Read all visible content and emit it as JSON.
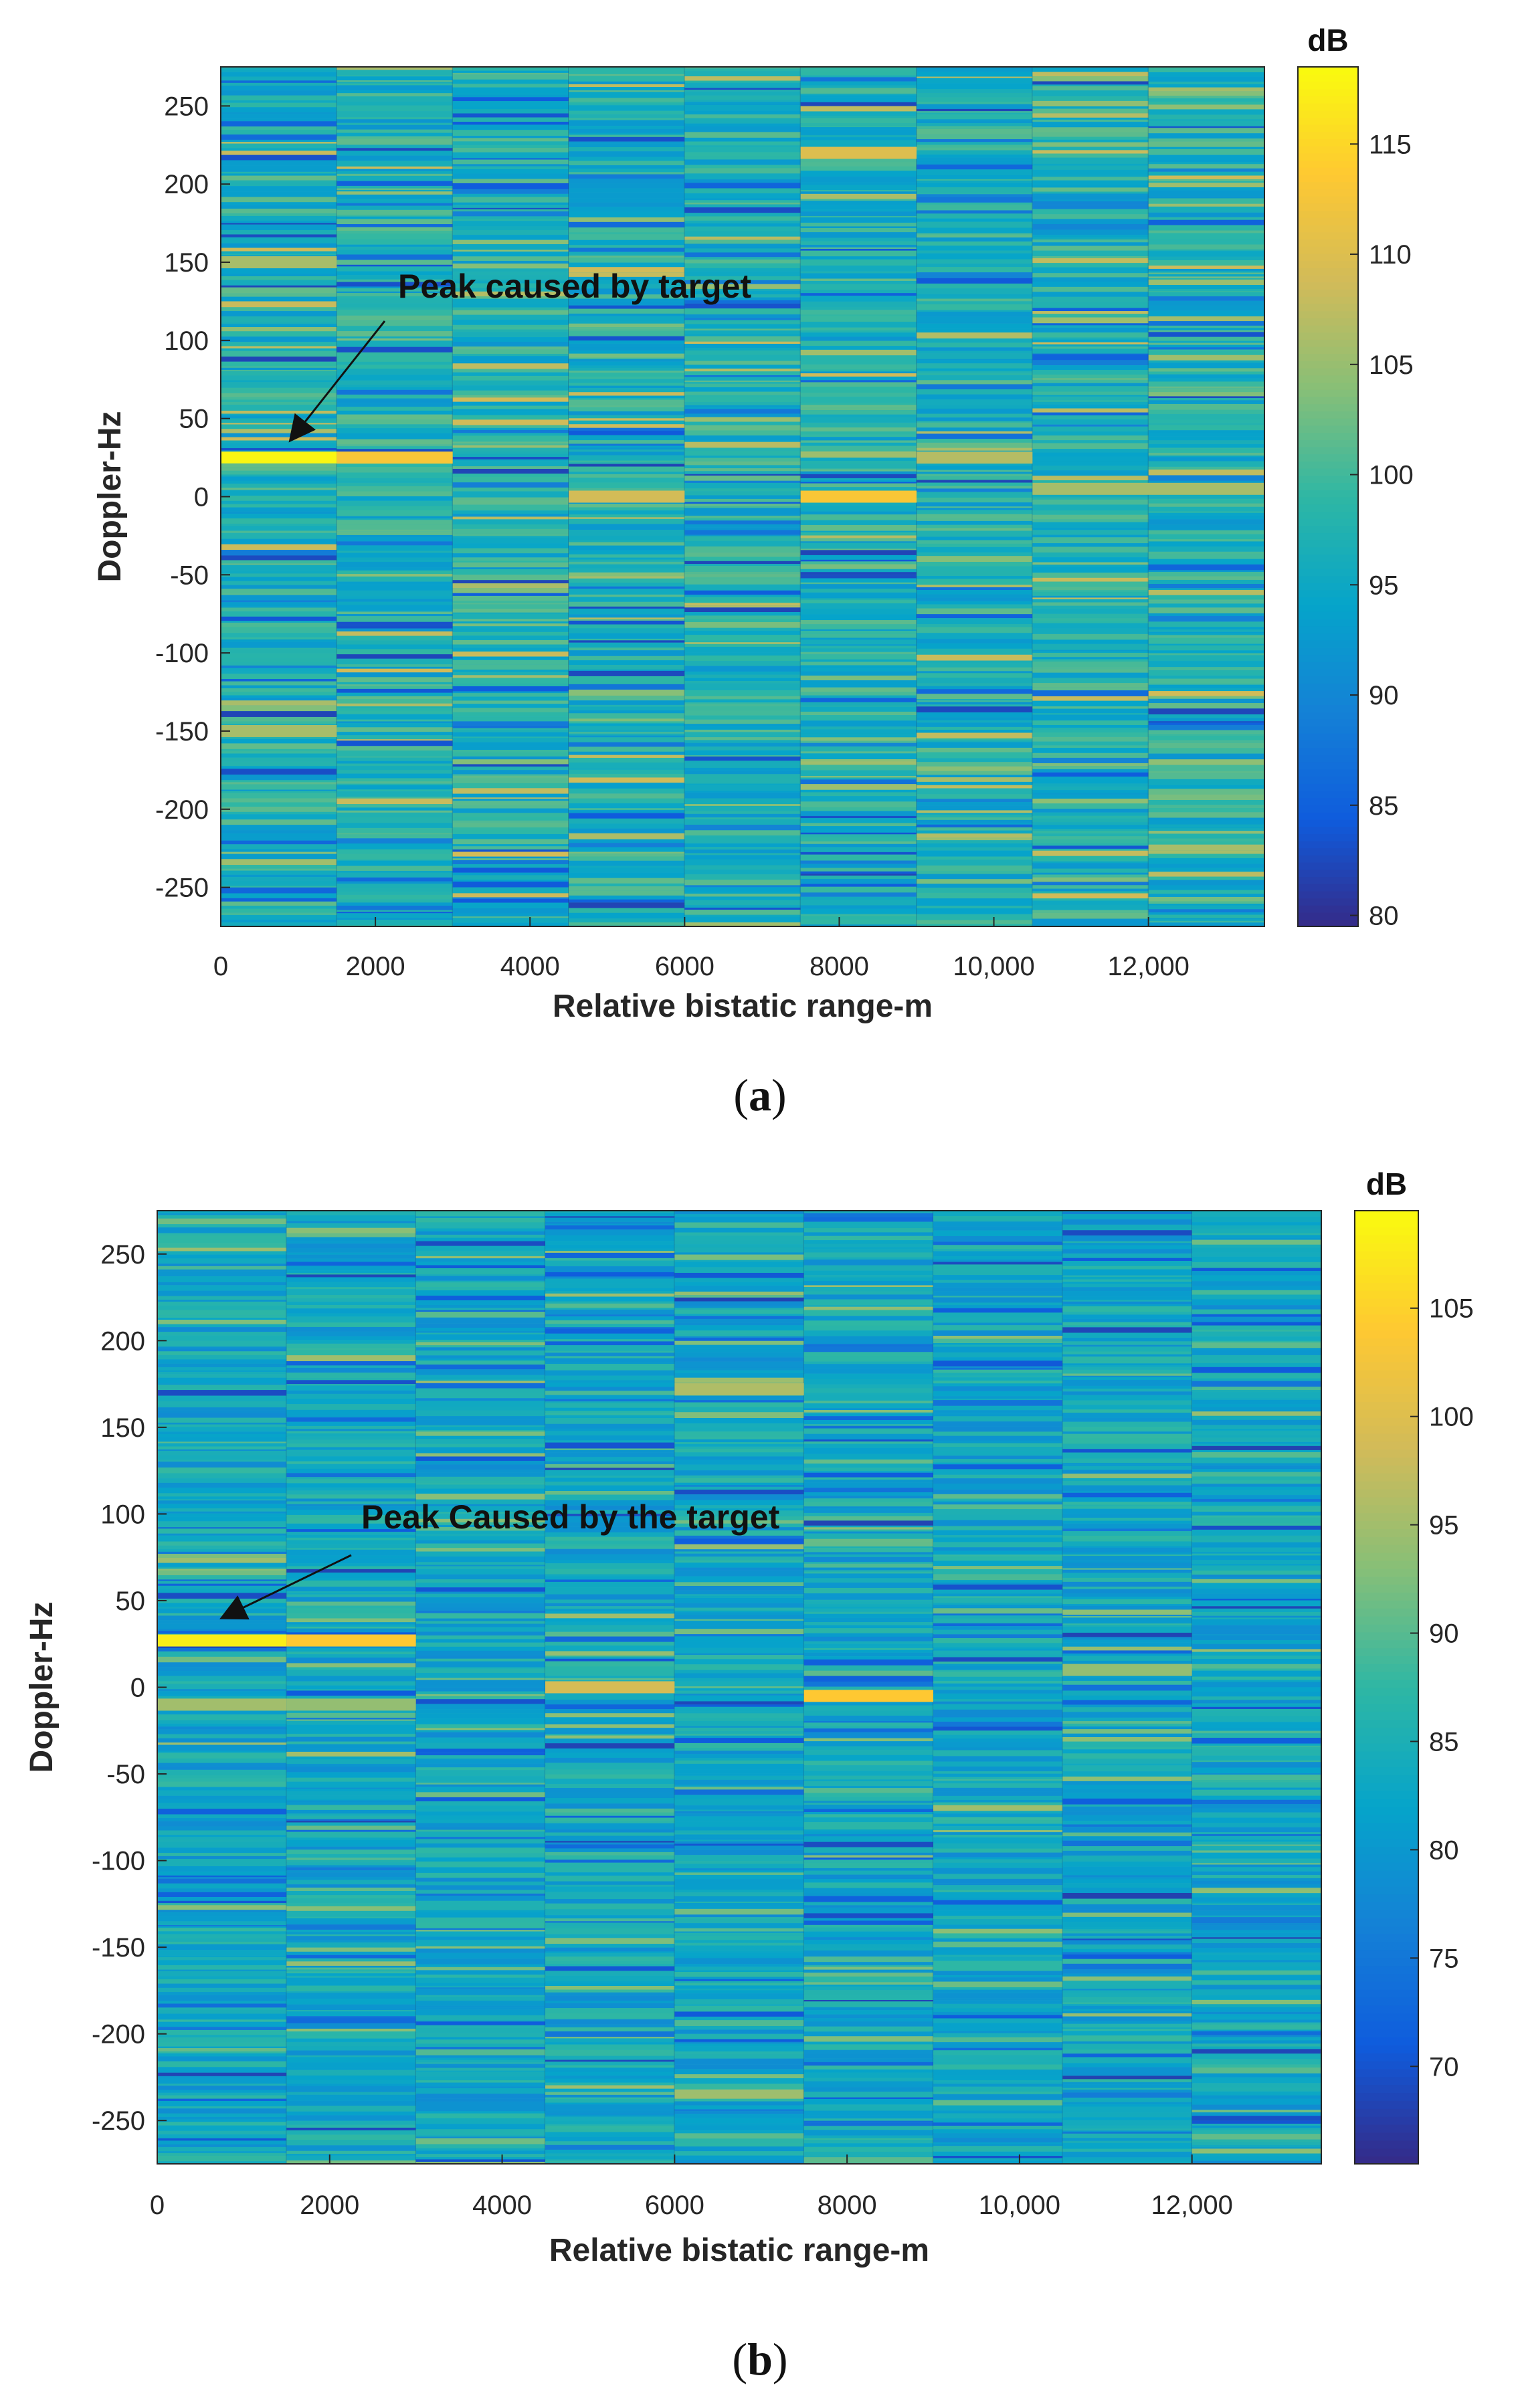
{
  "colors": {
    "colormap": [
      "#352a87",
      "#0f5cdd",
      "#1481d6",
      "#06a4ca",
      "#2eb7a4",
      "#87bf77",
      "#d1bb59",
      "#fec832",
      "#f9fb0e"
    ],
    "noise_base": "#29a9c9"
  },
  "chart_data": [
    {
      "type": "heatmap",
      "panel_label": "(a)",
      "caption": {
        "open": "(",
        "letter": "a",
        "close": ")"
      },
      "xlabel": "Relative bistatic range-m",
      "ylabel": "Doppler-Hz",
      "xlim": [
        0,
        13500
      ],
      "ylim": [
        -275,
        275
      ],
      "xticks": [
        0,
        2000,
        4000,
        6000,
        8000,
        10000,
        12000
      ],
      "xtick_labels": [
        "0",
        "2000",
        "4000",
        "6000",
        "8000",
        "10,000",
        "12,000"
      ],
      "yticks": [
        250,
        200,
        150,
        100,
        50,
        0,
        -50,
        -100,
        -150,
        -200,
        -250
      ],
      "range_bin_edges": [
        0,
        1500,
        3000,
        4500,
        6000,
        7500,
        9000,
        10500,
        12000,
        13500
      ],
      "colorbar": {
        "title": "dB",
        "clim": [
          79.5,
          118.5
        ],
        "ticks": [
          80,
          85,
          90,
          95,
          100,
          105,
          110,
          115
        ]
      },
      "noise_mean_db": 97,
      "strong_cells": [
        {
          "x0": 0,
          "x1": 1500,
          "doppler": 25,
          "db": 118
        },
        {
          "x0": 1500,
          "x1": 3000,
          "doppler": 25,
          "db": 113
        },
        {
          "x0": 7500,
          "x1": 9000,
          "doppler": 0,
          "db": 113
        },
        {
          "x0": 4500,
          "x1": 6000,
          "doppler": 0,
          "db": 109
        },
        {
          "x0": 9000,
          "x1": 10500,
          "doppler": 25,
          "db": 107
        },
        {
          "x0": 10500,
          "x1": 13500,
          "doppler": 5,
          "db": 106
        },
        {
          "x0": 7500,
          "x1": 9000,
          "doppler": 220,
          "db": 110
        },
        {
          "x0": 0,
          "x1": 1500,
          "doppler": 150,
          "db": 106
        },
        {
          "x0": 0,
          "x1": 1500,
          "doppler": -150,
          "db": 106
        }
      ],
      "annotation": {
        "text": "Peak caused by target",
        "points_to": {
          "x": 900,
          "y": 36
        }
      }
    },
    {
      "type": "heatmap",
      "panel_label": "(b)",
      "caption": {
        "open": "(",
        "letter": "b",
        "close": ")"
      },
      "xlabel": "Relative bistatic range-m",
      "ylabel": "Doppler-Hz",
      "xlim": [
        0,
        13500
      ],
      "ylim": [
        -275,
        275
      ],
      "xticks": [
        0,
        2000,
        4000,
        6000,
        8000,
        10000,
        12000
      ],
      "xtick_labels": [
        "0",
        "2000",
        "4000",
        "6000",
        "8000",
        "10,000",
        "12,000"
      ],
      "yticks": [
        250,
        200,
        150,
        100,
        50,
        0,
        -50,
        -100,
        -150,
        -200,
        -250
      ],
      "range_bin_edges": [
        0,
        1500,
        3000,
        4500,
        6000,
        7500,
        9000,
        10500,
        12000,
        13500
      ],
      "colorbar": {
        "title": "dB",
        "clim": [
          65.5,
          109.5
        ],
        "ticks": [
          70,
          75,
          80,
          85,
          90,
          95,
          100,
          105
        ]
      },
      "noise_mean_db": 83,
      "strong_cells": [
        {
          "x0": 0,
          "x1": 1500,
          "doppler": 27,
          "db": 108
        },
        {
          "x0": 1500,
          "x1": 3000,
          "doppler": 27,
          "db": 104
        },
        {
          "x0": 7500,
          "x1": 9000,
          "doppler": -5,
          "db": 104
        },
        {
          "x0": 4500,
          "x1": 6000,
          "doppler": 0,
          "db": 99
        },
        {
          "x0": 0,
          "x1": 1500,
          "doppler": -10,
          "db": 95
        },
        {
          "x0": 1500,
          "x1": 3000,
          "doppler": -10,
          "db": 94
        },
        {
          "x0": 6000,
          "x1": 7500,
          "doppler": 172,
          "db": 96
        },
        {
          "x0": 10500,
          "x1": 12000,
          "doppler": 10,
          "db": 94
        }
      ],
      "annotation": {
        "text": "Peak Caused by the target",
        "points_to": {
          "x": 750,
          "y": 40
        }
      }
    }
  ]
}
